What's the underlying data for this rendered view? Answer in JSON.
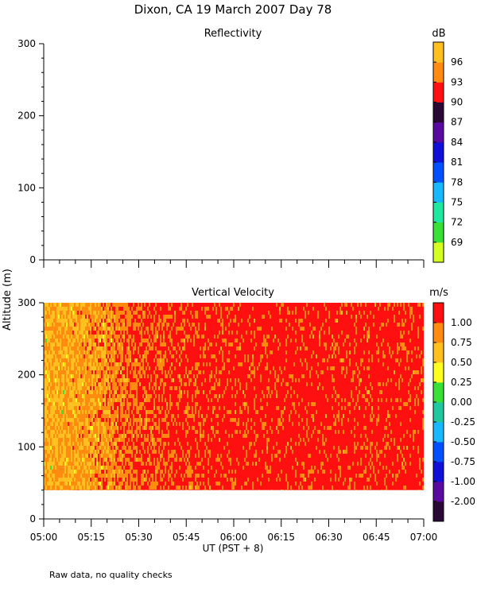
{
  "page": {
    "title": "Dixon, CA 19 March 2007  Day  78",
    "footer_note": "Raw data, no quality checks"
  },
  "chart_data": [
    {
      "type": "heatmap",
      "title": "Reflectivity",
      "xlabel": "UT  (PST + 8)",
      "ylabel": "Altitude (m)",
      "xlim": [
        "05:00",
        "07:00"
      ],
      "ylim": [
        0,
        300
      ],
      "ytick_labels": [
        "0",
        "100",
        "200",
        "300"
      ],
      "xtick_labels": [],
      "colorbar": {
        "unit": "dB",
        "tick_labels": [
          "69",
          "72",
          "75",
          "78",
          "81",
          "84",
          "87",
          "90",
          "93",
          "96"
        ],
        "colors": [
          "#d4ff20",
          "#38e038",
          "#20e8a0",
          "#18b8ff",
          "#0050ff",
          "#1010d8",
          "#5a0aa0",
          "#2a0a34",
          "#ff1010",
          "#ff8c10",
          "#ffc020"
        ]
      },
      "data_present": false
    },
    {
      "type": "heatmap",
      "title": "Vertical Velocity",
      "xlabel": "UT  (PST + 8)",
      "ylabel": "Altitude (m)",
      "xlim": [
        "05:00",
        "07:00"
      ],
      "ylim": [
        0,
        300
      ],
      "ytick_labels": [
        "0",
        "100",
        "200",
        "300"
      ],
      "xtick_labels": [
        "05:00",
        "05:15",
        "05:30",
        "05:45",
        "06:00",
        "06:15",
        "06:30",
        "06:45",
        "07:00"
      ],
      "colorbar": {
        "unit": "m/s",
        "tick_labels": [
          "-2.00",
          "-1.00",
          "-0.75",
          "-0.50",
          "-0.25",
          "0.00",
          "0.25",
          "0.50",
          "0.75",
          "1.00"
        ],
        "colors": [
          "#2a0a34",
          "#5a0aa0",
          "#1010d8",
          "#0050ff",
          "#18b8ff",
          "#20c8a0",
          "#38e038",
          "#ffff20",
          "#ffc020",
          "#ff8c10",
          "#ff1010"
        ]
      },
      "data_extent": {
        "altitude_min": 40,
        "altitude_max": 300,
        "time_start": "05:00",
        "time_end": "07:00"
      },
      "field_summary": [
        {
          "time": "05:00",
          "value": 0.6
        },
        {
          "time": "05:10",
          "value": 0.65
        },
        {
          "time": "05:20",
          "value": 0.75
        },
        {
          "time": "05:30",
          "value": 0.95
        },
        {
          "time": "05:45",
          "value": 1.05
        },
        {
          "time": "06:00",
          "value": 1.1
        },
        {
          "time": "06:30",
          "value": 1.1
        },
        {
          "time": "07:00",
          "value": 1.1
        }
      ]
    }
  ]
}
